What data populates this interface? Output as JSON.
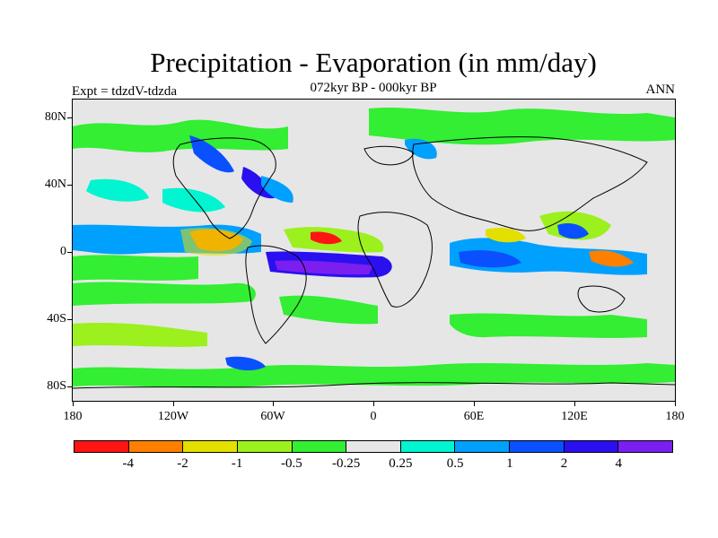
{
  "title": "Precipitation - Evaporation (in mm/day)",
  "subtitle": "072kyr BP - 000kyr BP",
  "left_label": "Expt = tdzdV-tdzda",
  "right_label": "ANN",
  "lat_labels": [
    "80N",
    "40N",
    "0",
    "40S",
    "80S"
  ],
  "lon_labels": [
    "180",
    "120W",
    "60W",
    "0",
    "60E",
    "120E",
    "180"
  ],
  "colorbar": {
    "colors": [
      "#ff1414",
      "#ff7f00",
      "#e3e000",
      "#9cf01e",
      "#33ee33",
      "#e6e6e6",
      "#00f5d0",
      "#00a0ff",
      "#0a50ff",
      "#2a10f0",
      "#7a1ff0"
    ],
    "labels": [
      "-4",
      "-2",
      "-1",
      "-0.5",
      "-0.25",
      "0.25",
      "0.5",
      "1",
      "2",
      "4"
    ]
  }
}
